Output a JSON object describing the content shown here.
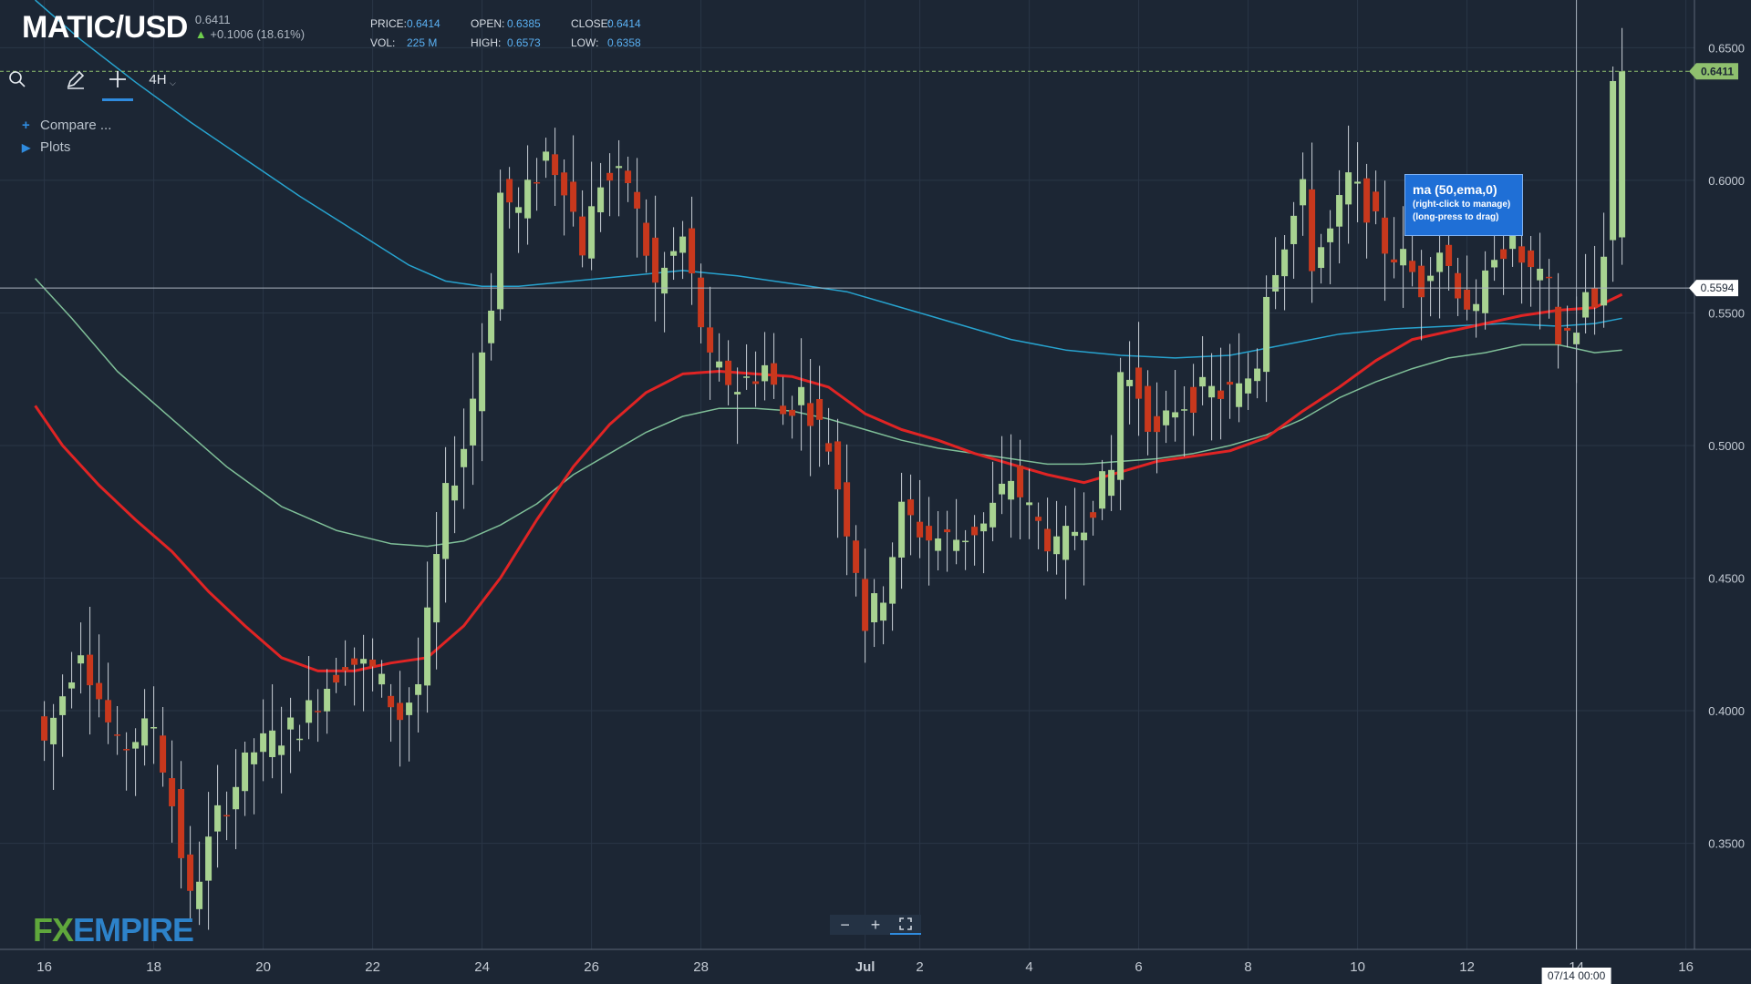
{
  "header": {
    "symbol": "MATIC/USD",
    "last": "0.6411",
    "change": "+0.1006 (18.61%)",
    "price_label": "PRICE:",
    "price": "0.6414",
    "open_label": "OPEN:",
    "open": "0.6385",
    "close_label": "CLOSE:",
    "close": "0.6414",
    "vol_label": "VOL:",
    "vol": "225 M",
    "high_label": "HIGH:",
    "high": "0.6573",
    "low_label": "LOW:",
    "low": "0.6358"
  },
  "toolbar": {
    "timeframe": "4H"
  },
  "menu": {
    "compare": "Compare ...",
    "plots": "Plots"
  },
  "tooltip": {
    "title": "ma (50,ema,0)",
    "line1": "(right-click to manage)",
    "line2": "(long-press to drag)"
  },
  "logo": {
    "fx": "FX",
    "empire": "EMPIRE"
  },
  "colors": {
    "background": "#1c2634",
    "up": "#a8d391",
    "down": "#c8381d",
    "ema50": "#e02424",
    "ma_blue": "#27a3cf",
    "ma_green": "#7fbf98",
    "accent": "#2f8bde"
  },
  "chart_data": {
    "type": "candlestick",
    "title": "MATIC/USD",
    "timeframe": "4H",
    "ylim": [
      0.31,
      0.668
    ],
    "y_ticks": [
      "0.3500",
      "0.4000",
      "0.4500",
      "0.5000",
      "0.5500",
      "0.6000",
      "0.6500"
    ],
    "x_ticks": [
      {
        "label": "16",
        "t": 0
      },
      {
        "label": "18",
        "t": 12
      },
      {
        "label": "20",
        "t": 24
      },
      {
        "label": "22",
        "t": 36
      },
      {
        "label": "24",
        "t": 48
      },
      {
        "label": "26",
        "t": 60
      },
      {
        "label": "28",
        "t": 72
      },
      {
        "label": "Jul",
        "t": 90
      },
      {
        "label": "2",
        "t": 96
      },
      {
        "label": "4",
        "t": 108
      },
      {
        "label": "6",
        "t": 120
      },
      {
        "label": "8",
        "t": 132
      },
      {
        "label": "10",
        "t": 144
      },
      {
        "label": "12",
        "t": 156
      },
      {
        "label": "14",
        "t": 168
      },
      {
        "label": "16",
        "t": 180
      }
    ],
    "crosshair": {
      "price": "0.5594",
      "time_label": "07/14 00:00",
      "t": 168
    },
    "last_price": {
      "value": 0.6411,
      "label": "0.6411"
    },
    "anchors": [
      {
        "t": 0,
        "p": 0.388
      },
      {
        "t": 4,
        "p": 0.425
      },
      {
        "t": 8,
        "p": 0.385
      },
      {
        "t": 12,
        "p": 0.395
      },
      {
        "t": 14,
        "p": 0.365
      },
      {
        "t": 16,
        "p": 0.328
      },
      {
        "t": 19,
        "p": 0.36
      },
      {
        "t": 23,
        "p": 0.385
      },
      {
        "t": 28,
        "p": 0.395
      },
      {
        "t": 33,
        "p": 0.42
      },
      {
        "t": 36,
        "p": 0.415
      },
      {
        "t": 39,
        "p": 0.398
      },
      {
        "t": 41,
        "p": 0.41
      },
      {
        "t": 44,
        "p": 0.48
      },
      {
        "t": 46,
        "p": 0.5
      },
      {
        "t": 49,
        "p": 0.555
      },
      {
        "t": 50,
        "p": 0.595
      },
      {
        "t": 52,
        "p": 0.588
      },
      {
        "t": 55,
        "p": 0.61
      },
      {
        "t": 57,
        "p": 0.6
      },
      {
        "t": 59,
        "p": 0.575
      },
      {
        "t": 61,
        "p": 0.6
      },
      {
        "t": 64,
        "p": 0.6
      },
      {
        "t": 67,
        "p": 0.56
      },
      {
        "t": 70,
        "p": 0.578
      },
      {
        "t": 73,
        "p": 0.53
      },
      {
        "t": 76,
        "p": 0.522
      },
      {
        "t": 79,
        "p": 0.53
      },
      {
        "t": 81,
        "p": 0.512
      },
      {
        "t": 83,
        "p": 0.52
      },
      {
        "t": 86,
        "p": 0.5
      },
      {
        "t": 89,
        "p": 0.455
      },
      {
        "t": 90,
        "p": 0.433
      },
      {
        "t": 92,
        "p": 0.445
      },
      {
        "t": 94,
        "p": 0.475
      },
      {
        "t": 97,
        "p": 0.465
      },
      {
        "t": 100,
        "p": 0.465
      },
      {
        "t": 103,
        "p": 0.47
      },
      {
        "t": 106,
        "p": 0.488
      },
      {
        "t": 108,
        "p": 0.475
      },
      {
        "t": 111,
        "p": 0.46
      },
      {
        "t": 114,
        "p": 0.473
      },
      {
        "t": 117,
        "p": 0.49
      },
      {
        "t": 118,
        "p": 0.528
      },
      {
        "t": 120,
        "p": 0.52
      },
      {
        "t": 122,
        "p": 0.502
      },
      {
        "t": 124,
        "p": 0.515
      },
      {
        "t": 127,
        "p": 0.52
      },
      {
        "t": 131,
        "p": 0.52
      },
      {
        "t": 133,
        "p": 0.532
      },
      {
        "t": 134,
        "p": 0.56
      },
      {
        "t": 136,
        "p": 0.578
      },
      {
        "t": 138,
        "p": 0.595
      },
      {
        "t": 139,
        "p": 0.57
      },
      {
        "t": 141,
        "p": 0.58
      },
      {
        "t": 143,
        "p": 0.6
      },
      {
        "t": 145,
        "p": 0.59
      },
      {
        "t": 147,
        "p": 0.575
      },
      {
        "t": 149,
        "p": 0.57
      },
      {
        "t": 151,
        "p": 0.56
      },
      {
        "t": 152,
        "p": 0.57
      },
      {
        "t": 153,
        "p": 0.575
      },
      {
        "t": 155,
        "p": 0.56
      },
      {
        "t": 157,
        "p": 0.548
      },
      {
        "t": 159,
        "p": 0.575
      },
      {
        "t": 161,
        "p": 0.575
      },
      {
        "t": 163,
        "p": 0.565
      },
      {
        "t": 165,
        "p": 0.558
      },
      {
        "t": 166,
        "p": 0.54
      },
      {
        "t": 168,
        "p": 0.545
      },
      {
        "t": 169,
        "p": 0.555
      },
      {
        "t": 170,
        "p": 0.552
      },
      {
        "t": 171,
        "p": 0.575
      },
      {
        "t": 172,
        "p": 0.637
      },
      {
        "t": 173,
        "p": 0.6411
      }
    ],
    "ma_ema50": [
      {
        "t": -1,
        "p": 0.515
      },
      {
        "t": 2,
        "p": 0.5
      },
      {
        "t": 6,
        "p": 0.485
      },
      {
        "t": 10,
        "p": 0.472
      },
      {
        "t": 14,
        "p": 0.46
      },
      {
        "t": 18,
        "p": 0.445
      },
      {
        "t": 22,
        "p": 0.432
      },
      {
        "t": 26,
        "p": 0.42
      },
      {
        "t": 30,
        "p": 0.415
      },
      {
        "t": 34,
        "p": 0.415
      },
      {
        "t": 38,
        "p": 0.418
      },
      {
        "t": 42,
        "p": 0.42
      },
      {
        "t": 46,
        "p": 0.432
      },
      {
        "t": 50,
        "p": 0.45
      },
      {
        "t": 54,
        "p": 0.472
      },
      {
        "t": 58,
        "p": 0.492
      },
      {
        "t": 62,
        "p": 0.508
      },
      {
        "t": 66,
        "p": 0.52
      },
      {
        "t": 70,
        "p": 0.527
      },
      {
        "t": 74,
        "p": 0.528
      },
      {
        "t": 78,
        "p": 0.527
      },
      {
        "t": 82,
        "p": 0.526
      },
      {
        "t": 86,
        "p": 0.522
      },
      {
        "t": 90,
        "p": 0.512
      },
      {
        "t": 94,
        "p": 0.506
      },
      {
        "t": 98,
        "p": 0.502
      },
      {
        "t": 102,
        "p": 0.497
      },
      {
        "t": 106,
        "p": 0.493
      },
      {
        "t": 110,
        "p": 0.489
      },
      {
        "t": 114,
        "p": 0.486
      },
      {
        "t": 118,
        "p": 0.49
      },
      {
        "t": 122,
        "p": 0.494
      },
      {
        "t": 126,
        "p": 0.496
      },
      {
        "t": 130,
        "p": 0.498
      },
      {
        "t": 134,
        "p": 0.503
      },
      {
        "t": 138,
        "p": 0.513
      },
      {
        "t": 142,
        "p": 0.522
      },
      {
        "t": 146,
        "p": 0.532
      },
      {
        "t": 150,
        "p": 0.54
      },
      {
        "t": 154,
        "p": 0.543
      },
      {
        "t": 158,
        "p": 0.546
      },
      {
        "t": 162,
        "p": 0.549
      },
      {
        "t": 166,
        "p": 0.551
      },
      {
        "t": 170,
        "p": 0.552
      },
      {
        "t": 173,
        "p": 0.557
      }
    ],
    "ma_blue": [
      {
        "t": -1,
        "p": 0.668
      },
      {
        "t": 4,
        "p": 0.653
      },
      {
        "t": 10,
        "p": 0.637
      },
      {
        "t": 16,
        "p": 0.622
      },
      {
        "t": 22,
        "p": 0.608
      },
      {
        "t": 28,
        "p": 0.594
      },
      {
        "t": 34,
        "p": 0.581
      },
      {
        "t": 40,
        "p": 0.568
      },
      {
        "t": 44,
        "p": 0.562
      },
      {
        "t": 48,
        "p": 0.56
      },
      {
        "t": 52,
        "p": 0.56
      },
      {
        "t": 58,
        "p": 0.562
      },
      {
        "t": 64,
        "p": 0.564
      },
      {
        "t": 70,
        "p": 0.566
      },
      {
        "t": 76,
        "p": 0.564
      },
      {
        "t": 82,
        "p": 0.561
      },
      {
        "t": 88,
        "p": 0.558
      },
      {
        "t": 94,
        "p": 0.552
      },
      {
        "t": 100,
        "p": 0.546
      },
      {
        "t": 106,
        "p": 0.54
      },
      {
        "t": 112,
        "p": 0.536
      },
      {
        "t": 118,
        "p": 0.534
      },
      {
        "t": 124,
        "p": 0.533
      },
      {
        "t": 130,
        "p": 0.534
      },
      {
        "t": 136,
        "p": 0.538
      },
      {
        "t": 142,
        "p": 0.542
      },
      {
        "t": 148,
        "p": 0.544
      },
      {
        "t": 154,
        "p": 0.545
      },
      {
        "t": 160,
        "p": 0.546
      },
      {
        "t": 166,
        "p": 0.545
      },
      {
        "t": 170,
        "p": 0.546
      },
      {
        "t": 173,
        "p": 0.548
      }
    ],
    "ma_green": [
      {
        "t": -1,
        "p": 0.563
      },
      {
        "t": 3,
        "p": 0.548
      },
      {
        "t": 8,
        "p": 0.528
      },
      {
        "t": 14,
        "p": 0.51
      },
      {
        "t": 20,
        "p": 0.492
      },
      {
        "t": 26,
        "p": 0.477
      },
      {
        "t": 32,
        "p": 0.468
      },
      {
        "t": 38,
        "p": 0.463
      },
      {
        "t": 42,
        "p": 0.462
      },
      {
        "t": 46,
        "p": 0.464
      },
      {
        "t": 50,
        "p": 0.47
      },
      {
        "t": 54,
        "p": 0.478
      },
      {
        "t": 58,
        "p": 0.489
      },
      {
        "t": 62,
        "p": 0.497
      },
      {
        "t": 66,
        "p": 0.505
      },
      {
        "t": 70,
        "p": 0.511
      },
      {
        "t": 74,
        "p": 0.514
      },
      {
        "t": 78,
        "p": 0.514
      },
      {
        "t": 82,
        "p": 0.513
      },
      {
        "t": 86,
        "p": 0.51
      },
      {
        "t": 90,
        "p": 0.506
      },
      {
        "t": 94,
        "p": 0.502
      },
      {
        "t": 98,
        "p": 0.499
      },
      {
        "t": 102,
        "p": 0.497
      },
      {
        "t": 106,
        "p": 0.495
      },
      {
        "t": 110,
        "p": 0.493
      },
      {
        "t": 114,
        "p": 0.493
      },
      {
        "t": 118,
        "p": 0.494
      },
      {
        "t": 122,
        "p": 0.495
      },
      {
        "t": 126,
        "p": 0.497
      },
      {
        "t": 130,
        "p": 0.5
      },
      {
        "t": 134,
        "p": 0.504
      },
      {
        "t": 138,
        "p": 0.51
      },
      {
        "t": 142,
        "p": 0.518
      },
      {
        "t": 146,
        "p": 0.524
      },
      {
        "t": 150,
        "p": 0.529
      },
      {
        "t": 154,
        "p": 0.533
      },
      {
        "t": 158,
        "p": 0.535
      },
      {
        "t": 162,
        "p": 0.538
      },
      {
        "t": 166,
        "p": 0.538
      },
      {
        "t": 170,
        "p": 0.535
      },
      {
        "t": 173,
        "p": 0.536
      }
    ]
  }
}
